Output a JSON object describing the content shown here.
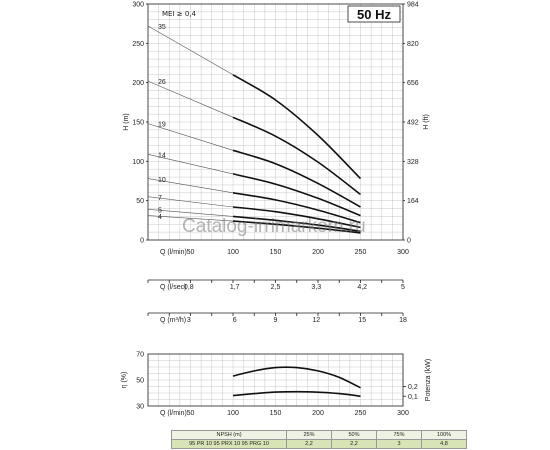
{
  "header": {
    "frequency": "50 Hz",
    "mei": "MEI ≥ 0,4",
    "watermark": "Catalog-irrimarkom.ru"
  },
  "chart_data": {
    "type": "line",
    "head_chart": {
      "ylabel": "H (m)",
      "ylabel_right": "H (ft)",
      "ylim": [
        0,
        300
      ],
      "yticks": [
        0,
        50,
        100,
        150,
        200,
        250,
        300
      ],
      "yticks_right": [
        "0",
        "164",
        "328",
        "492",
        "656",
        "820",
        "984"
      ],
      "xlim": [
        0,
        300
      ],
      "x_axis_label": "Q (l/min)",
      "xticks": [
        "50",
        "100",
        "150",
        "200",
        "250",
        "300"
      ],
      "series": [
        {
          "name": "35",
          "thin": [
            [
              0,
              272
            ],
            [
              100,
              210
            ]
          ],
          "bold": [
            [
              100,
              210
            ],
            [
              150,
              178
            ],
            [
              200,
              133
            ],
            [
              250,
              78
            ]
          ]
        },
        {
          "name": "26",
          "thin": [
            [
              0,
              202
            ],
            [
              100,
              156
            ]
          ],
          "bold": [
            [
              100,
              156
            ],
            [
              150,
              132
            ],
            [
              200,
              99
            ],
            [
              250,
              58
            ]
          ]
        },
        {
          "name": "19",
          "thin": [
            [
              0,
              148
            ],
            [
              100,
              114
            ]
          ],
          "bold": [
            [
              100,
              114
            ],
            [
              150,
              97
            ],
            [
              200,
              72
            ],
            [
              250,
              42
            ]
          ]
        },
        {
          "name": "14",
          "thin": [
            [
              0,
              109
            ],
            [
              100,
              84
            ]
          ],
          "bold": [
            [
              100,
              84
            ],
            [
              150,
              71
            ],
            [
              200,
              53
            ],
            [
              250,
              31
            ]
          ]
        },
        {
          "name": "10",
          "thin": [
            [
              0,
              78
            ],
            [
              100,
              60
            ]
          ],
          "bold": [
            [
              100,
              60
            ],
            [
              150,
              51
            ],
            [
              200,
              38
            ],
            [
              250,
              22
            ]
          ]
        },
        {
          "name": "7",
          "thin": [
            [
              0,
              55
            ],
            [
              100,
              42
            ]
          ],
          "bold": [
            [
              100,
              42
            ],
            [
              150,
              36
            ],
            [
              200,
              27
            ],
            [
              250,
              16
            ]
          ]
        },
        {
          "name": "5",
          "thin": [
            [
              0,
              39
            ],
            [
              100,
              30
            ]
          ],
          "bold": [
            [
              100,
              30
            ],
            [
              150,
              25
            ],
            [
              200,
              19
            ],
            [
              250,
              11
            ]
          ]
        },
        {
          "name": "4",
          "thin": [
            [
              0,
              31
            ],
            [
              100,
              24
            ]
          ],
          "bold": [
            [
              100,
              24
            ],
            [
              150,
              20
            ],
            [
              200,
              15
            ],
            [
              250,
              9
            ]
          ]
        }
      ]
    },
    "flow_scales": [
      {
        "label": "Q (l/sec)",
        "ticks": [
          "0,8",
          "1,7",
          "2,5",
          "3,3",
          "4,2",
          "5"
        ]
      },
      {
        "label": "Q (m³/h)",
        "ticks": [
          "3",
          "6",
          "9",
          "12",
          "15",
          "18"
        ]
      }
    ],
    "efficiency_chart": {
      "ylabel": "η (%)",
      "ylabel_right": "Potenza (kW)",
      "ylim": [
        30,
        70
      ],
      "yticks": [
        30,
        50,
        70
      ],
      "yticks_right": [
        "0,1",
        "0,2"
      ],
      "x_axis_label": "Q (l/min)",
      "xticks": [
        "50",
        "100",
        "150",
        "200",
        "250",
        "300"
      ],
      "efficiency": [
        [
          100,
          53
        ],
        [
          125,
          57
        ],
        [
          150,
          59.5
        ],
        [
          175,
          59.5
        ],
        [
          200,
          57
        ],
        [
          225,
          52
        ],
        [
          250,
          44
        ]
      ],
      "power": [
        [
          100,
          38
        ],
        [
          125,
          39.5
        ],
        [
          150,
          40.7
        ],
        [
          175,
          41
        ],
        [
          200,
          40.6
        ],
        [
          225,
          39.5
        ],
        [
          250,
          37.5
        ]
      ]
    },
    "npsh_table": {
      "header": [
        "NPSH (m)",
        "25%",
        "50%",
        "75%",
        "100%"
      ],
      "row_label": "95 PR 10  95 PRX 10  95 PRG 10",
      "values": [
        "2,2",
        "2,2",
        "3",
        "4,8"
      ]
    }
  }
}
